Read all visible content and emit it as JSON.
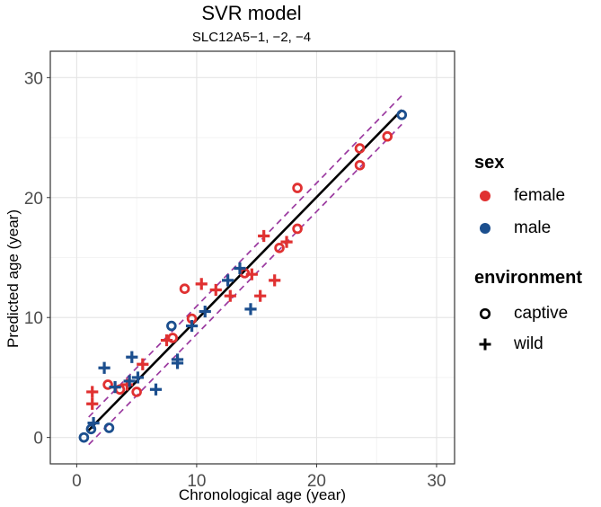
{
  "chart_data": {
    "type": "scatter",
    "title": "SVR model",
    "subtitle": "SLC12A5−1, −2, −4",
    "xlabel": "Chronological age (year)",
    "ylabel": "Predicted age (year)",
    "xlim": [
      -2.2,
      31.5
    ],
    "ylim": [
      -2.2,
      32.2
    ],
    "x_ticks": [
      0,
      10,
      20,
      30
    ],
    "y_ticks": [
      0,
      10,
      20,
      30
    ],
    "x_tick_labels": [
      "0",
      "10",
      "20",
      "30"
    ],
    "y_tick_labels": [
      "0",
      "10",
      "20",
      "30"
    ],
    "grid": true,
    "legend_position": "right",
    "colors": {
      "female": "#e03131",
      "male": "#1c4f8e",
      "fit_line": "#000000",
      "interval": "#9b3aa0"
    },
    "fit_line": {
      "x": [
        0.9,
        27.1
      ],
      "y": [
        0.5,
        27.3
      ]
    },
    "interval_lines": [
      {
        "x": [
          1.0,
          27.1
        ],
        "y": [
          1.7,
          28.5
        ]
      },
      {
        "x": [
          1.0,
          27.1
        ],
        "y": [
          -0.6,
          26.1
        ]
      }
    ],
    "legends": [
      {
        "title": "sex",
        "entries": [
          {
            "label": "female",
            "color": "#e03131",
            "key": "dot"
          },
          {
            "label": "male",
            "color": "#1c4f8e",
            "key": "dot"
          }
        ]
      },
      {
        "title": "environment",
        "entries": [
          {
            "label": "captive",
            "color": "#000000",
            "key": "circle"
          },
          {
            "label": "wild",
            "color": "#000000",
            "key": "plus"
          }
        ]
      }
    ],
    "series": [
      {
        "name": "female – captive",
        "color": "#e03131",
        "shape": "circle",
        "points": [
          [
            2.6,
            4.4
          ],
          [
            3.6,
            4.0
          ],
          [
            5.0,
            3.8
          ],
          [
            8.0,
            8.3
          ],
          [
            9.0,
            12.4
          ],
          [
            9.6,
            9.9
          ],
          [
            14.0,
            13.7
          ],
          [
            16.9,
            15.8
          ],
          [
            18.4,
            20.8
          ],
          [
            18.4,
            17.4
          ],
          [
            23.6,
            22.7
          ],
          [
            23.6,
            24.1
          ],
          [
            25.9,
            25.1
          ]
        ]
      },
      {
        "name": "female – wild",
        "color": "#e03131",
        "shape": "plus",
        "points": [
          [
            1.3,
            3.8
          ],
          [
            1.3,
            2.8
          ],
          [
            4.2,
            4.4
          ],
          [
            5.5,
            6.1
          ],
          [
            7.5,
            8.1
          ],
          [
            10.4,
            12.8
          ],
          [
            11.6,
            12.3
          ],
          [
            12.8,
            11.8
          ],
          [
            14.6,
            13.6
          ],
          [
            15.3,
            11.8
          ],
          [
            15.6,
            16.8
          ],
          [
            16.5,
            13.1
          ],
          [
            17.5,
            16.3
          ]
        ]
      },
      {
        "name": "male – captive",
        "color": "#1c4f8e",
        "shape": "circle",
        "points": [
          [
            0.6,
            0.0
          ],
          [
            1.2,
            0.7
          ],
          [
            2.7,
            0.8
          ],
          [
            7.9,
            9.3
          ],
          [
            27.1,
            26.9
          ]
        ]
      },
      {
        "name": "male – wild",
        "color": "#1c4f8e",
        "shape": "plus",
        "points": [
          [
            1.4,
            1.2
          ],
          [
            2.3,
            5.8
          ],
          [
            3.2,
            4.2
          ],
          [
            4.4,
            4.7
          ],
          [
            4.6,
            6.7
          ],
          [
            5.1,
            5.0
          ],
          [
            6.6,
            4.0
          ],
          [
            8.4,
            6.5
          ],
          [
            8.4,
            6.2
          ],
          [
            9.6,
            9.3
          ],
          [
            10.7,
            10.5
          ],
          [
            12.6,
            13.1
          ],
          [
            13.6,
            14.1
          ],
          [
            14.5,
            10.7
          ]
        ]
      }
    ]
  }
}
